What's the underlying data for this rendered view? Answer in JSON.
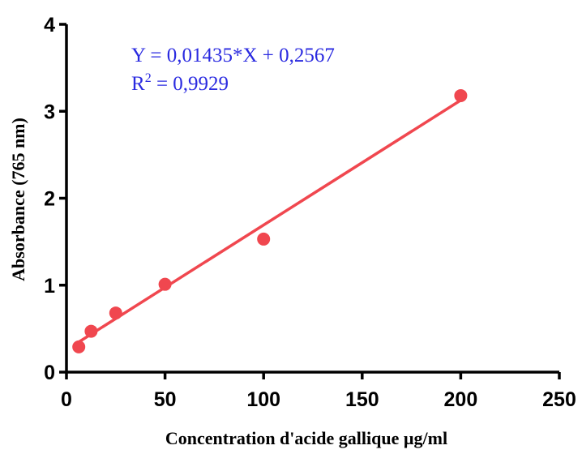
{
  "chart_data": {
    "type": "scatter",
    "xlabel": "Concentration d'acide gallique µg/ml",
    "ylabel": "Absorbance (765 nm)",
    "xlim": [
      0,
      250
    ],
    "ylim": [
      0,
      4
    ],
    "x_ticks": [
      "0",
      "50",
      "100",
      "150",
      "200",
      "250"
    ],
    "y_ticks": [
      "0",
      "1",
      "2",
      "3",
      "4"
    ],
    "points": {
      "x": [
        6.25,
        12.5,
        25,
        50,
        100,
        200
      ],
      "y": [
        0.29,
        0.47,
        0.68,
        1.01,
        1.53,
        3.18
      ]
    },
    "fit_line": {
      "slope": 0.01435,
      "intercept": 0.2567,
      "x_range": [
        6.25,
        200
      ]
    },
    "equation": "Y = 0,01435*X + 0,2567",
    "r2_prefix": "R",
    "r2_sup": "2",
    "r2_value": " = 0,9929",
    "grid": false,
    "colors": {
      "points": "#f0474f",
      "line": "#f0474f",
      "annotation": "#2a2ae0",
      "axes": "#000000"
    }
  }
}
